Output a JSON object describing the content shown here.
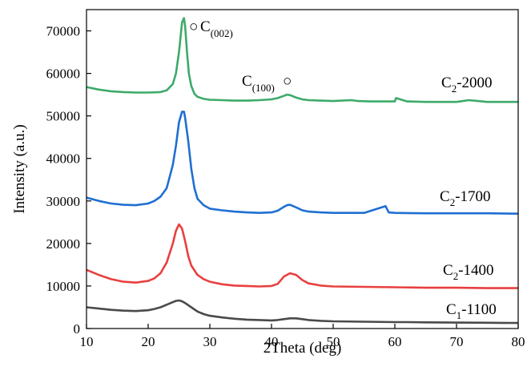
{
  "chart_data": {
    "type": "line",
    "title": "",
    "xlabel": "2Theta (deg)",
    "ylabel": "Intensity (a.u.)",
    "xlim": [
      10,
      80
    ],
    "ylim": [
      0,
      75000
    ],
    "x_ticks": [
      10,
      20,
      30,
      40,
      50,
      60,
      70,
      80
    ],
    "y_ticks": [
      0,
      10000,
      20000,
      30000,
      40000,
      50000,
      60000,
      70000
    ],
    "grid": false,
    "legend": "none",
    "series": [
      {
        "name": "C1-1100",
        "label_main": "C",
        "label_sub": "1",
        "label_rest": "-1100",
        "color": "#4a4a4a",
        "x": [
          10,
          12,
          14,
          16,
          18,
          20,
          21,
          22,
          23,
          24,
          24.5,
          25,
          25.5,
          26,
          27,
          28,
          29,
          30,
          32,
          34,
          36,
          38,
          40,
          41,
          42,
          43,
          44,
          45,
          46,
          48,
          50,
          55,
          60,
          62,
          65,
          70,
          75,
          80
        ],
        "y": [
          5000,
          4700,
          4400,
          4200,
          4100,
          4300,
          4600,
          5000,
          5600,
          6200,
          6500,
          6600,
          6400,
          6000,
          5000,
          4000,
          3400,
          3000,
          2600,
          2300,
          2100,
          2000,
          1900,
          2000,
          2200,
          2400,
          2400,
          2200,
          2000,
          1800,
          1700,
          1600,
          1500,
          1500,
          1450,
          1400,
          1350,
          1300
        ]
      },
      {
        "name": "C2-1400",
        "label_main": "C",
        "label_sub": "2",
        "label_rest": "-1400",
        "color": "#e8403f",
        "x": [
          10,
          12,
          14,
          16,
          18,
          20,
          21,
          22,
          23,
          24,
          24.5,
          25,
          25.5,
          26,
          26.5,
          27,
          28,
          29,
          30,
          32,
          34,
          36,
          38,
          40,
          41,
          42,
          43,
          44,
          45,
          46,
          48,
          50,
          55,
          60,
          65,
          70,
          75,
          80
        ],
        "y": [
          13800,
          12600,
          11600,
          11000,
          10800,
          11200,
          11800,
          13000,
          15500,
          20000,
          23000,
          24500,
          23500,
          20500,
          17000,
          14800,
          12600,
          11600,
          11000,
          10400,
          10100,
          10000,
          9900,
          10000,
          10500,
          12200,
          13000,
          12600,
          11400,
          10600,
          10100,
          9900,
          9800,
          9700,
          9600,
          9600,
          9500,
          9500
        ]
      },
      {
        "name": "C2-1700",
        "label_main": "C",
        "label_sub": "2",
        "label_rest": "-1700",
        "color": "#1f6fd1",
        "x": [
          10,
          12,
          14,
          16,
          18,
          20,
          21,
          22,
          23,
          24,
          24.5,
          25,
          25.5,
          25.8,
          26,
          26.5,
          27,
          27.5,
          28,
          29,
          30,
          32,
          34,
          36,
          38,
          40,
          41,
          42,
          42.5,
          43,
          44,
          45,
          46,
          48,
          50,
          55,
          58.5,
          59,
          60,
          65,
          70,
          75,
          80
        ],
        "y": [
          30800,
          30000,
          29400,
          29100,
          29000,
          29400,
          30000,
          31000,
          33000,
          38500,
          43000,
          48500,
          51000,
          51000,
          49500,
          44000,
          37500,
          33000,
          30500,
          29000,
          28200,
          27800,
          27500,
          27300,
          27200,
          27300,
          27700,
          28600,
          29000,
          29100,
          28500,
          27800,
          27500,
          27300,
          27200,
          27200,
          28800,
          27300,
          27200,
          27100,
          27100,
          27100,
          27000
        ]
      },
      {
        "name": "C2-2000",
        "label_main": "C",
        "label_sub": "2",
        "label_rest": "-2000",
        "color": "#3daa6a",
        "x": [
          10,
          12,
          14,
          16,
          18,
          20,
          22,
          23,
          24,
          24.5,
          25,
          25.5,
          25.8,
          26,
          26.3,
          26.6,
          27,
          27.5,
          28,
          29,
          30,
          32,
          34,
          36,
          38,
          40,
          41,
          42,
          42.5,
          43,
          44,
          45,
          46,
          48,
          50,
          53,
          54,
          56,
          60,
          60.2,
          62,
          65,
          70,
          72,
          75,
          80
        ],
        "y": [
          56800,
          56200,
          55800,
          55600,
          55500,
          55500,
          55600,
          56000,
          57500,
          60000,
          65000,
          72000,
          73000,
          71000,
          65000,
          60000,
          57000,
          55200,
          54500,
          54000,
          53800,
          53700,
          53600,
          53600,
          53700,
          53900,
          54200,
          54700,
          55000,
          54900,
          54300,
          53900,
          53700,
          53600,
          53500,
          53700,
          53500,
          53400,
          53400,
          54200,
          53400,
          53300,
          53300,
          53700,
          53300,
          53300
        ]
      }
    ],
    "annotations": [
      {
        "main": "C",
        "sub": "(002)",
        "marker": "○",
        "x": 26,
        "y": 73000
      },
      {
        "main": "C",
        "sub": "(100)",
        "marker": "○",
        "x": 43,
        "y": 55000
      }
    ]
  }
}
